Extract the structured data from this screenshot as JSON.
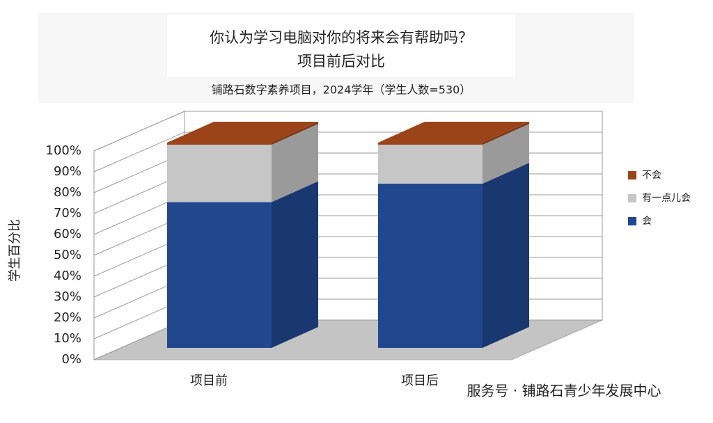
{
  "chart_data": {
    "type": "stacked-bar-3d",
    "title": "你认为学习电脑对你的将来会有帮助吗？",
    "title_line2": "项目前后对比",
    "subtitle": "铺路石数字素养项目，2024学年（学生人数=530）",
    "y_label": "学生百分比",
    "categories": [
      "项目前",
      "项目后"
    ],
    "series": [
      {
        "name": "会",
        "color": "#21488f",
        "values": [
          71,
          80
        ]
      },
      {
        "name": "有一点儿会",
        "color": "#c6c6c6",
        "values": [
          28,
          19
        ]
      },
      {
        "name": "不会",
        "color": "#9c4419",
        "values": [
          1,
          1
        ]
      }
    ],
    "ylim": [
      0,
      100
    ],
    "yticks": [
      {
        "value": 0,
        "label": "0%"
      },
      {
        "value": 10,
        "label": "10%"
      },
      {
        "value": 20,
        "label": "20%"
      },
      {
        "value": 30,
        "label": "30%"
      },
      {
        "value": 40,
        "label": "40%"
      },
      {
        "value": 50,
        "label": "50%"
      },
      {
        "value": 60,
        "label": "60%"
      },
      {
        "value": 70,
        "label": "70%"
      },
      {
        "value": 80,
        "label": "80%"
      },
      {
        "value": 90,
        "label": "90%"
      },
      {
        "value": 100,
        "label": "100%"
      }
    ],
    "grid": true,
    "legend": "right",
    "watermark": "服务号 · 铺路石青少年发展中心"
  }
}
